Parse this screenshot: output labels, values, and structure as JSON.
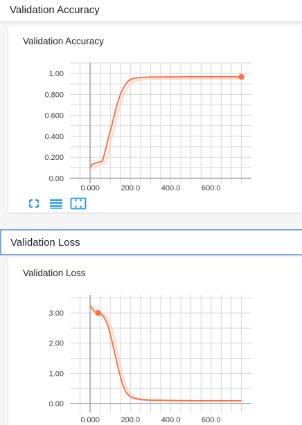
{
  "sections": [
    {
      "header": "Validation Accuracy",
      "card_title": "Validation Accuracy"
    },
    {
      "header": "Validation Loss",
      "card_title": "Validation Loss"
    }
  ],
  "icons": [
    "fullscreen-icon",
    "data-table-icon",
    "fit-domain-icon"
  ],
  "colors": {
    "line": "#ff7043",
    "smoothed_shadow": "#ffccbc",
    "accent_blue": "#2196f3"
  },
  "chart_data": [
    {
      "type": "line",
      "title": "Validation Accuracy",
      "x_ticks": [
        "0.000",
        "200.0",
        "400.0",
        "600.0"
      ],
      "y_ticks": [
        "0.00",
        "0.200",
        "0.400",
        "0.600",
        "0.800",
        "1.00"
      ],
      "xlim": [
        -100,
        800
      ],
      "ylim": [
        -0.05,
        1.1
      ],
      "grid": true,
      "series": [
        {
          "x": [
            0,
            10,
            20,
            40,
            60,
            70,
            90,
            110,
            130,
            150,
            170,
            190,
            210,
            240,
            300,
            400,
            500,
            600,
            700,
            750
          ],
          "y": [
            0.1,
            0.13,
            0.14,
            0.15,
            0.16,
            0.22,
            0.38,
            0.52,
            0.68,
            0.8,
            0.88,
            0.93,
            0.95,
            0.96,
            0.965,
            0.967,
            0.968,
            0.968,
            0.968,
            0.968
          ]
        }
      ],
      "marker": {
        "x": 750,
        "y": 0.968
      }
    },
    {
      "type": "line",
      "title": "Validation Loss",
      "x_ticks": [
        "0.000",
        "200.0",
        "400.0",
        "600.0"
      ],
      "y_ticks": [
        "0.00",
        "1.00",
        "2.00",
        "3.00"
      ],
      "xlim": [
        -100,
        800
      ],
      "ylim": [
        -0.3,
        3.6
      ],
      "grid": true,
      "series": [
        {
          "x": [
            0,
            10,
            20,
            30,
            40,
            50,
            60,
            70,
            80,
            90,
            100,
            120,
            140,
            160,
            180,
            200,
            220,
            250,
            300,
            400,
            500,
            600,
            700,
            750
          ],
          "y": [
            3.25,
            3.15,
            3.05,
            3.02,
            3.0,
            2.98,
            2.93,
            2.85,
            2.72,
            2.55,
            2.3,
            1.75,
            1.15,
            0.65,
            0.35,
            0.22,
            0.17,
            0.13,
            0.11,
            0.1,
            0.09,
            0.09,
            0.09,
            0.09
          ]
        }
      ],
      "marker": {
        "x": 40,
        "y": 3.0
      }
    }
  ]
}
